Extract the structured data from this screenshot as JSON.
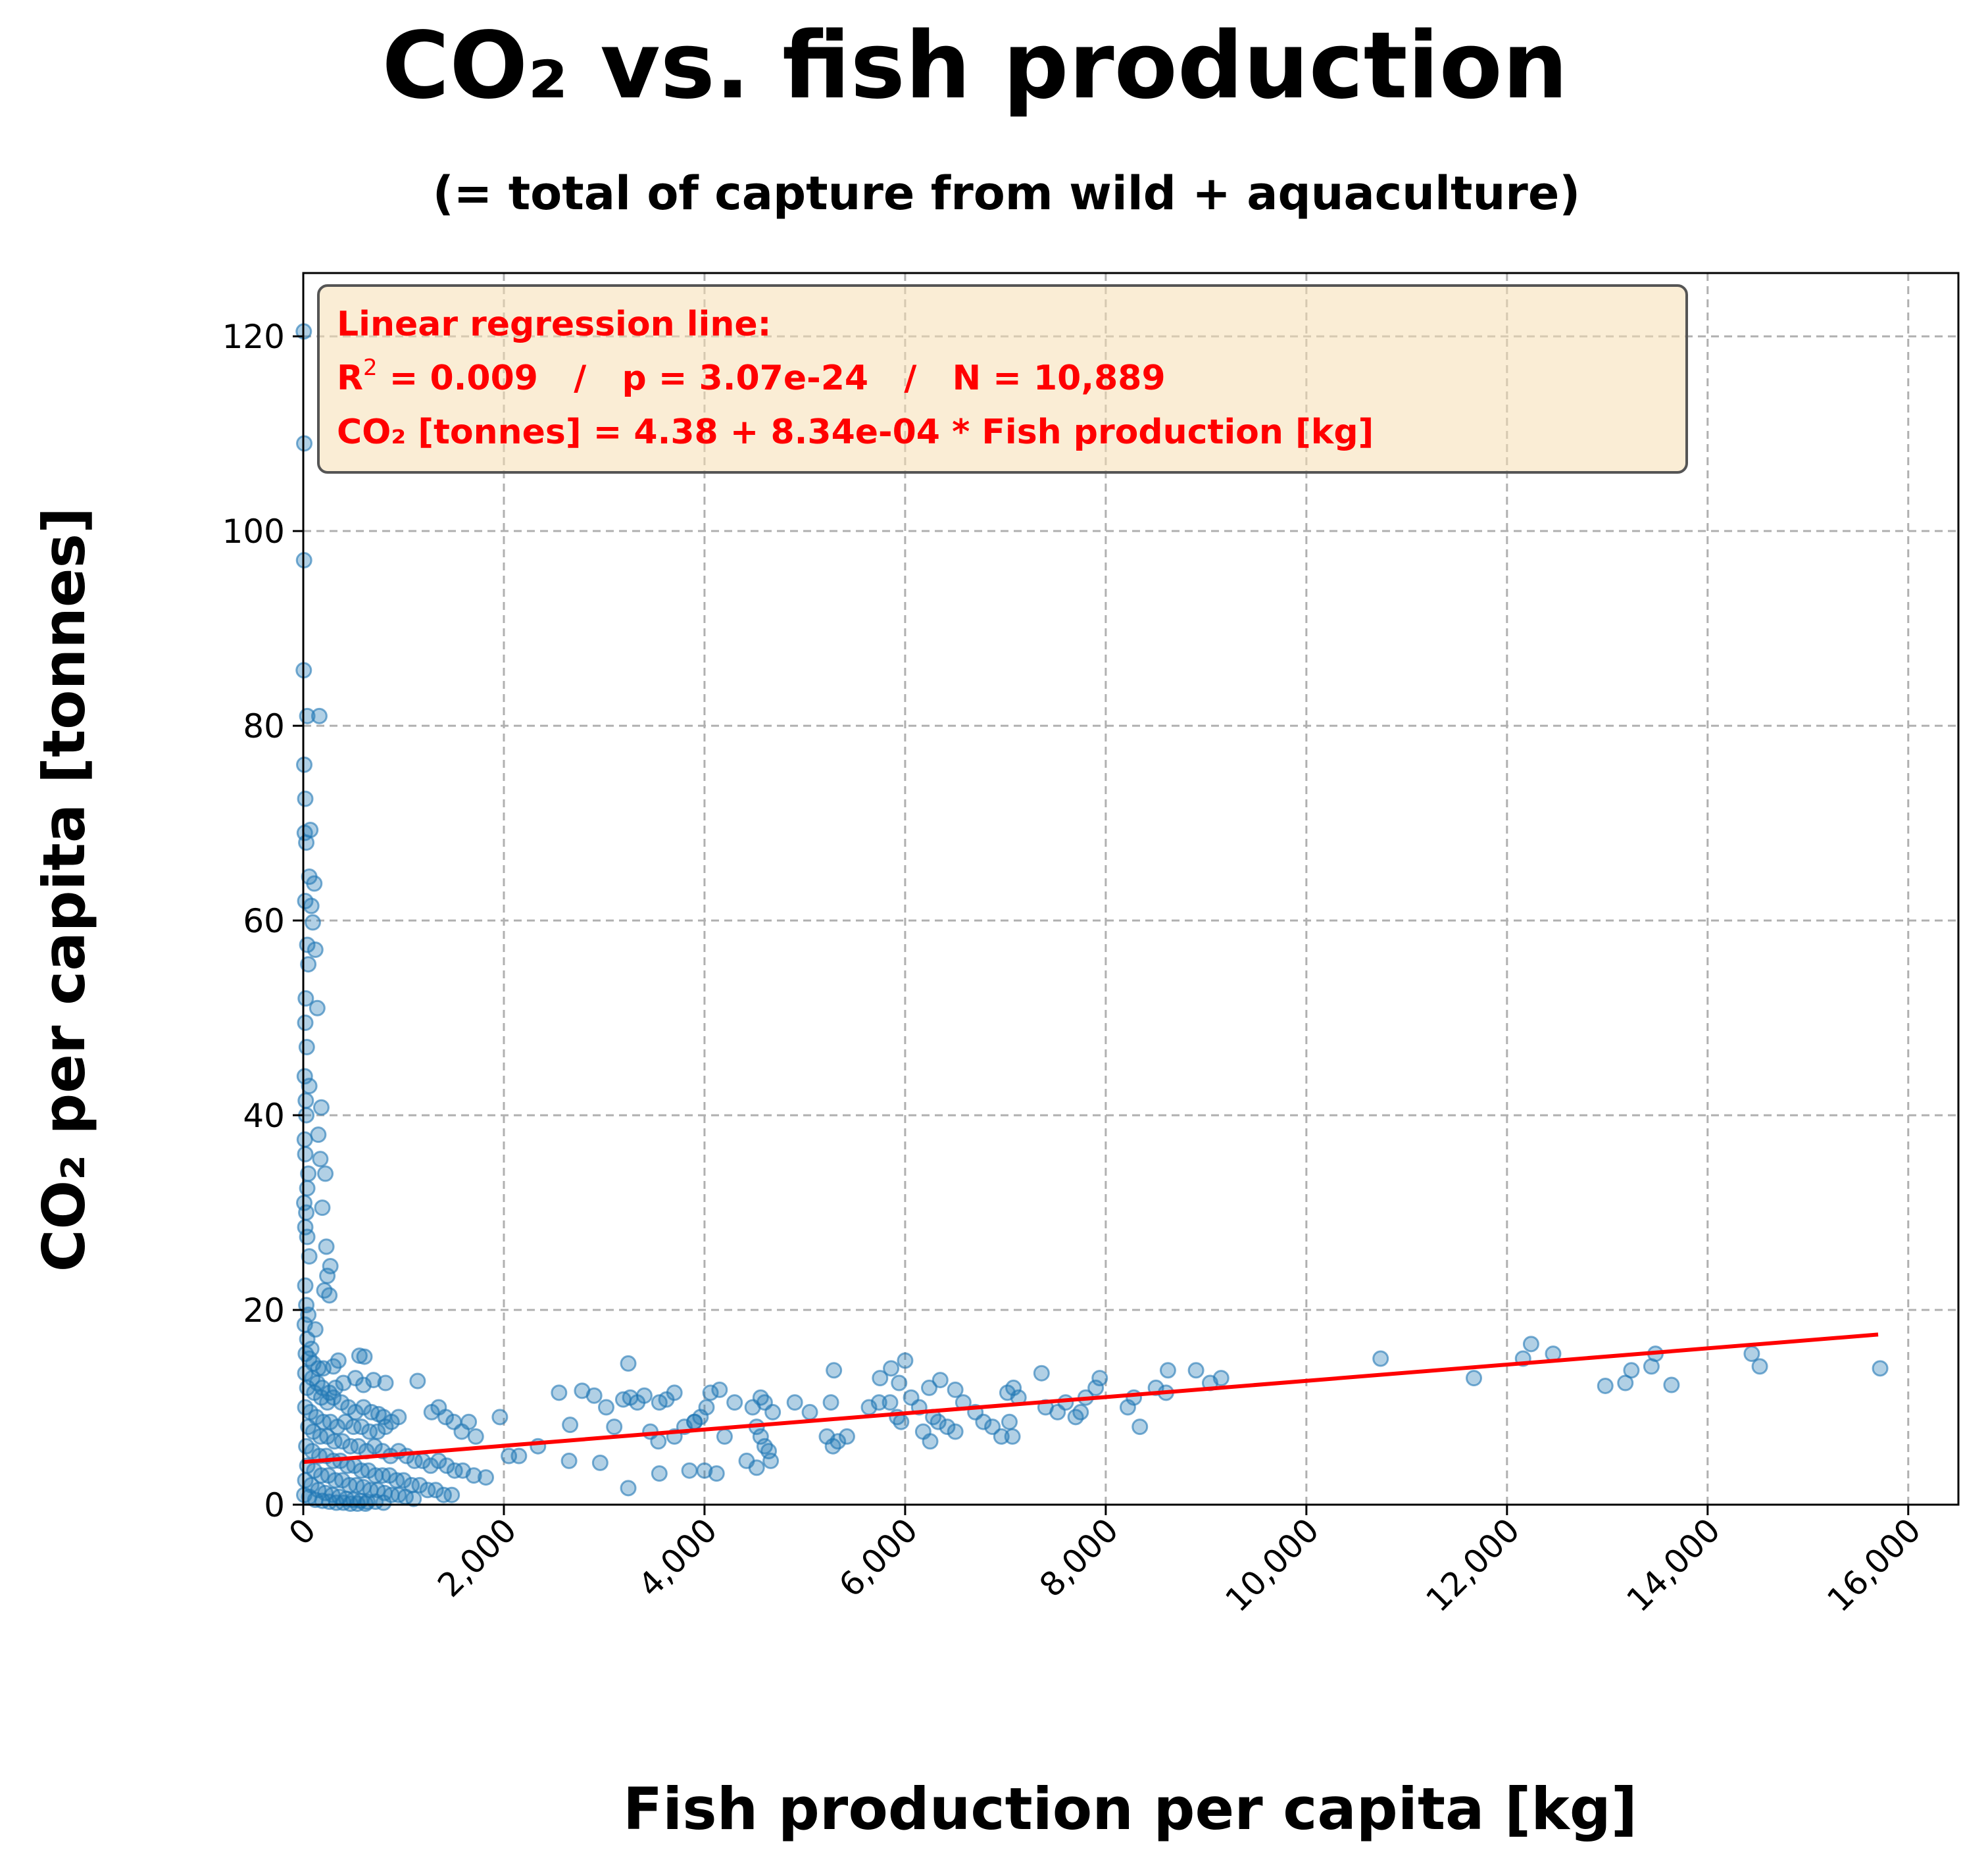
{
  "chart_data": {
    "type": "scatter",
    "title": "CO₂ vs. fish production",
    "subtitle": "(= total of capture from wild + aquaculture)",
    "xlabel": "Fish production per capita [kg]",
    "ylabel": "CO₂ per capita [tonnes]",
    "xlim": [
      0,
      16500
    ],
    "ylim": [
      0,
      126.5
    ],
    "x_ticks": [
      0,
      2000,
      4000,
      6000,
      8000,
      10000,
      12000,
      14000,
      16000
    ],
    "x_tick_labels": [
      "0",
      "2,000",
      "4,000",
      "6,000",
      "8,000",
      "10,000",
      "12,000",
      "14,000",
      "16,000"
    ],
    "y_ticks": [
      0,
      20,
      40,
      60,
      80,
      100,
      120
    ],
    "y_tick_labels": [
      "0",
      "20",
      "40",
      "60",
      "80",
      "100",
      "120"
    ],
    "grid": true,
    "colors": {
      "points": "#1f77b4",
      "regression": "#ff0000",
      "annotation_bg": "#f5deb3"
    },
    "annotation": {
      "line1": "Linear regression line:",
      "line2_r": "R",
      "line2_sup": "2",
      "line2_rest": " = 0.009   /   p = 3.07e-24   /   N = 10,889",
      "line3": "CO₂ [tonnes] = 4.38 + 8.34e-04 * Fish production [kg]"
    },
    "regression": {
      "intercept": 4.38,
      "slope": 0.000834,
      "x_range": [
        0,
        15700
      ]
    },
    "series": [
      {
        "type": "scatter",
        "points": [
          [
            5,
            120.5
          ],
          [
            10,
            109
          ],
          [
            8,
            97
          ],
          [
            5,
            85.7
          ],
          [
            40,
            81
          ],
          [
            160,
            81
          ],
          [
            10,
            76
          ],
          [
            20,
            72.5
          ],
          [
            15,
            69
          ],
          [
            30,
            68
          ],
          [
            70,
            69.3
          ],
          [
            60,
            64.5
          ],
          [
            110,
            63.8
          ],
          [
            20,
            62
          ],
          [
            80,
            61.5
          ],
          [
            95,
            59.8
          ],
          [
            40,
            57.5
          ],
          [
            120,
            57
          ],
          [
            50,
            55.5
          ],
          [
            25,
            52
          ],
          [
            140,
            51
          ],
          [
            20,
            49.5
          ],
          [
            35,
            47
          ],
          [
            15,
            44
          ],
          [
            60,
            43
          ],
          [
            25,
            41.5
          ],
          [
            30,
            40
          ],
          [
            180,
            40.8
          ],
          [
            150,
            38
          ],
          [
            15,
            37.5
          ],
          [
            20,
            36
          ],
          [
            170,
            35.5
          ],
          [
            50,
            34
          ],
          [
            220,
            34
          ],
          [
            40,
            32.5
          ],
          [
            10,
            31
          ],
          [
            30,
            30
          ],
          [
            190,
            30.5
          ],
          [
            20,
            28.5
          ],
          [
            40,
            27.5
          ],
          [
            230,
            26.5
          ],
          [
            60,
            25.5
          ],
          [
            270,
            24.5
          ],
          [
            240,
            23.5
          ],
          [
            20,
            22.5
          ],
          [
            210,
            22
          ],
          [
            260,
            21.5
          ],
          [
            30,
            20.5
          ],
          [
            50,
            19.5
          ],
          [
            15,
            18.5
          ],
          [
            120,
            18
          ],
          [
            40,
            17
          ],
          [
            80,
            16
          ],
          [
            25,
            15.5
          ],
          [
            60,
            15
          ],
          [
            100,
            14.5
          ],
          [
            150,
            14
          ],
          [
            200,
            14
          ],
          [
            300,
            14.2
          ],
          [
            350,
            14.8
          ],
          [
            560,
            15.3
          ],
          [
            610,
            15.2
          ],
          [
            700,
            12.8
          ],
          [
            1140,
            12.7
          ],
          [
            20,
            13.5
          ],
          [
            90,
            13
          ],
          [
            140,
            12.5
          ],
          [
            190,
            12
          ],
          [
            260,
            11.5
          ],
          [
            320,
            12
          ],
          [
            400,
            12.5
          ],
          [
            520,
            13
          ],
          [
            600,
            12.3
          ],
          [
            820,
            12.5
          ],
          [
            40,
            12
          ],
          [
            110,
            11.5
          ],
          [
            180,
            11
          ],
          [
            240,
            10.5
          ],
          [
            300,
            11
          ],
          [
            380,
            10.5
          ],
          [
            450,
            10
          ],
          [
            520,
            9.5
          ],
          [
            600,
            10
          ],
          [
            680,
            9.5
          ],
          [
            750,
            9.3
          ],
          [
            800,
            9
          ],
          [
            880,
            8.5
          ],
          [
            950,
            9
          ],
          [
            20,
            10
          ],
          [
            70,
            9.5
          ],
          [
            130,
            9
          ],
          [
            200,
            8.5
          ],
          [
            270,
            8.5
          ],
          [
            340,
            8
          ],
          [
            420,
            8.5
          ],
          [
            500,
            8
          ],
          [
            580,
            8
          ],
          [
            660,
            7.5
          ],
          [
            740,
            7.5
          ],
          [
            820,
            8
          ],
          [
            1280,
            9.5
          ],
          [
            1350,
            10
          ],
          [
            1420,
            9
          ],
          [
            1500,
            8.5
          ],
          [
            1580,
            7.5
          ],
          [
            1650,
            8.5
          ],
          [
            1720,
            7
          ],
          [
            1960,
            9
          ],
          [
            2150,
            5
          ],
          [
            50,
            8
          ],
          [
            100,
            7.5
          ],
          [
            170,
            7
          ],
          [
            240,
            7
          ],
          [
            310,
            6.5
          ],
          [
            390,
            6.5
          ],
          [
            470,
            6
          ],
          [
            550,
            6
          ],
          [
            630,
            5.5
          ],
          [
            710,
            6
          ],
          [
            790,
            5.5
          ],
          [
            870,
            5
          ],
          [
            950,
            5.5
          ],
          [
            1030,
            5
          ],
          [
            1110,
            4.5
          ],
          [
            1190,
            4.5
          ],
          [
            1270,
            4
          ],
          [
            1350,
            4.5
          ],
          [
            1430,
            4
          ],
          [
            1510,
            3.5
          ],
          [
            1590,
            3.5
          ],
          [
            1700,
            3
          ],
          [
            1820,
            2.8
          ],
          [
            2050,
            5
          ],
          [
            2340,
            6
          ],
          [
            30,
            6
          ],
          [
            90,
            5.5
          ],
          [
            160,
            5
          ],
          [
            230,
            5
          ],
          [
            300,
            4.5
          ],
          [
            370,
            4.5
          ],
          [
            440,
            4
          ],
          [
            510,
            4
          ],
          [
            580,
            3.5
          ],
          [
            650,
            3.5
          ],
          [
            720,
            3
          ],
          [
            790,
            3
          ],
          [
            860,
            3
          ],
          [
            930,
            2.5
          ],
          [
            1000,
            2.5
          ],
          [
            1080,
            2
          ],
          [
            1160,
            2
          ],
          [
            1240,
            1.5
          ],
          [
            1320,
            1.5
          ],
          [
            1400,
            1
          ],
          [
            1480,
            1
          ],
          [
            40,
            4
          ],
          [
            110,
            3.5
          ],
          [
            180,
            3
          ],
          [
            250,
            3
          ],
          [
            320,
            2.5
          ],
          [
            390,
            2.5
          ],
          [
            460,
            2
          ],
          [
            530,
            2
          ],
          [
            600,
            1.8
          ],
          [
            670,
            1.5
          ],
          [
            740,
            1.5
          ],
          [
            810,
            1.2
          ],
          [
            880,
            1
          ],
          [
            950,
            1
          ],
          [
            1020,
            0.8
          ],
          [
            1100,
            0.6
          ],
          [
            20,
            2.5
          ],
          [
            80,
            2
          ],
          [
            150,
            1.5
          ],
          [
            220,
            1.2
          ],
          [
            290,
            1
          ],
          [
            360,
            0.8
          ],
          [
            430,
            0.6
          ],
          [
            500,
            0.5
          ],
          [
            570,
            0.4
          ],
          [
            640,
            0.3
          ],
          [
            720,
            0.3
          ],
          [
            800,
            0.2
          ],
          [
            10,
            1
          ],
          [
            60,
            0.8
          ],
          [
            120,
            0.5
          ],
          [
            190,
            0.4
          ],
          [
            260,
            0.3
          ],
          [
            330,
            0.2
          ],
          [
            400,
            0.2
          ],
          [
            470,
            0.1
          ],
          [
            540,
            0.1
          ],
          [
            620,
            0.1
          ],
          [
            2550,
            11.5
          ],
          [
            2780,
            11.7
          ],
          [
            2900,
            11.2
          ],
          [
            3020,
            10
          ],
          [
            3240,
            14.5
          ],
          [
            3190,
            10.8
          ],
          [
            3260,
            11
          ],
          [
            3330,
            10.5
          ],
          [
            3400,
            11.2
          ],
          [
            3550,
            10.5
          ],
          [
            3620,
            10.8
          ],
          [
            3700,
            11.5
          ],
          [
            3460,
            7.5
          ],
          [
            3540,
            6.5
          ],
          [
            3700,
            7
          ],
          [
            3800,
            8
          ],
          [
            3900,
            8.5
          ],
          [
            3960,
            9
          ],
          [
            4020,
            10
          ],
          [
            4060,
            11.5
          ],
          [
            4150,
            11.8
          ],
          [
            4300,
            10.5
          ],
          [
            4480,
            10
          ],
          [
            4560,
            11
          ],
          [
            4600,
            10.5
          ],
          [
            4680,
            9.5
          ],
          [
            4520,
            8
          ],
          [
            4560,
            7
          ],
          [
            4600,
            6
          ],
          [
            4640,
            5.5
          ],
          [
            4420,
            4.5
          ],
          [
            4520,
            3.8
          ],
          [
            4660,
            4.5
          ],
          [
            4000,
            3.5
          ],
          [
            4120,
            3.2
          ],
          [
            3850,
            3.5
          ],
          [
            3240,
            1.7
          ],
          [
            2650,
            4.5
          ],
          [
            2960,
            4.3
          ],
          [
            3550,
            3.2
          ],
          [
            2660,
            8.2
          ],
          [
            3100,
            8
          ],
          [
            3900,
            8.5
          ],
          [
            4200,
            7
          ],
          [
            5050,
            9.5
          ],
          [
            4900,
            10.5
          ],
          [
            5220,
            7
          ],
          [
            5280,
            6
          ],
          [
            5330,
            6.5
          ],
          [
            5420,
            7
          ],
          [
            5260,
            10.5
          ],
          [
            5290,
            13.8
          ],
          [
            5740,
            10.5
          ],
          [
            5640,
            10
          ],
          [
            5850,
            10.5
          ],
          [
            5920,
            9
          ],
          [
            5960,
            8.5
          ],
          [
            5750,
            13
          ],
          [
            5860,
            14
          ],
          [
            6000,
            14.8
          ],
          [
            5940,
            12.5
          ],
          [
            6060,
            11
          ],
          [
            6140,
            10
          ],
          [
            6280,
            9
          ],
          [
            6330,
            8.5
          ],
          [
            6420,
            8
          ],
          [
            6500,
            7.5
          ],
          [
            6240,
            12
          ],
          [
            6350,
            12.8
          ],
          [
            6500,
            11.8
          ],
          [
            6580,
            10.5
          ],
          [
            6700,
            9.5
          ],
          [
            6780,
            8.5
          ],
          [
            6870,
            8
          ],
          [
            6250,
            6.5
          ],
          [
            6180,
            7.5
          ],
          [
            6960,
            7
          ],
          [
            7020,
            11.5
          ],
          [
            7080,
            12
          ],
          [
            7130,
            11
          ],
          [
            7040,
            8.5
          ],
          [
            7070,
            7
          ],
          [
            7360,
            13.5
          ],
          [
            7400,
            10
          ],
          [
            7520,
            9.5
          ],
          [
            7600,
            10.5
          ],
          [
            7750,
            9.5
          ],
          [
            7800,
            11
          ],
          [
            7900,
            12
          ],
          [
            7940,
            13
          ],
          [
            7700,
            9
          ],
          [
            8220,
            10
          ],
          [
            8280,
            11
          ],
          [
            8340,
            8
          ],
          [
            8500,
            12
          ],
          [
            8600,
            11.5
          ],
          [
            8620,
            13.8
          ],
          [
            8900,
            13.8
          ],
          [
            9040,
            12.5
          ],
          [
            9150,
            13
          ],
          [
            10740,
            15
          ],
          [
            11670,
            13
          ],
          [
            12160,
            15
          ],
          [
            12240,
            16.5
          ],
          [
            12460,
            15.5
          ],
          [
            12980,
            12.2
          ],
          [
            13180,
            12.5
          ],
          [
            13240,
            13.8
          ],
          [
            13440,
            14.2
          ],
          [
            13480,
            15.5
          ],
          [
            13640,
            12.3
          ],
          [
            14440,
            15.5
          ],
          [
            14520,
            14.2
          ],
          [
            15720,
            14
          ]
        ]
      }
    ]
  }
}
